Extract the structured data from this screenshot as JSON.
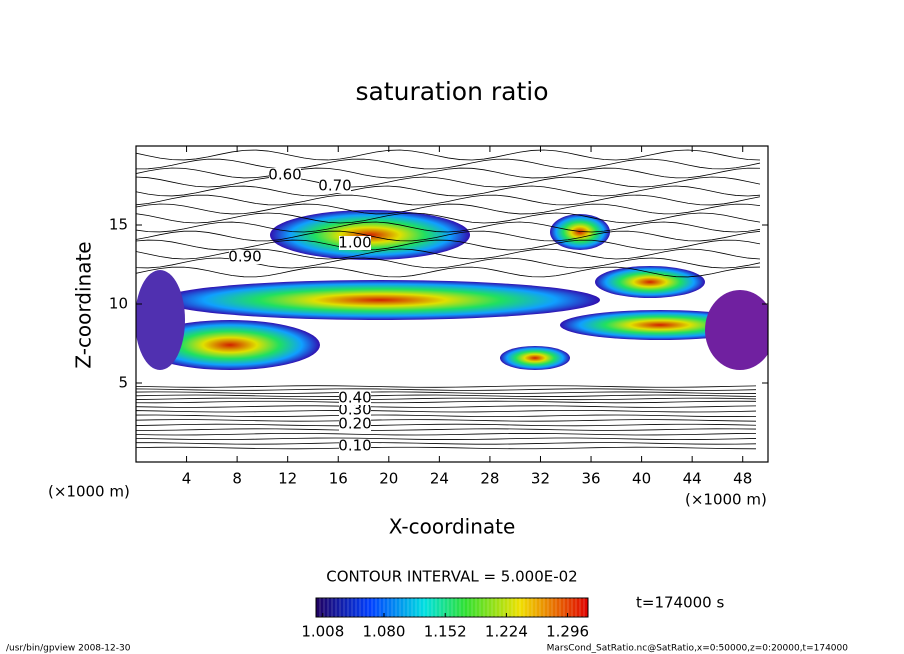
{
  "chart_data": {
    "type": "contour",
    "title": "saturation ratio",
    "xlabel": "X-coordinate",
    "ylabel": "Z-coordinate",
    "axis_unit": "(×1000 m)",
    "xlim": [
      0,
      50
    ],
    "xticks": [
      4,
      8,
      12,
      16,
      20,
      24,
      28,
      32,
      36,
      40,
      44,
      48
    ],
    "ylim": [
      0,
      20
    ],
    "yticks": [
      5,
      10,
      15
    ],
    "contour_interval": "CONTOUR INTERVAL = 5.000E-02",
    "time_label": "t=174000 s",
    "contour_labels": [
      {
        "value": 0.1,
        "label": "0.10"
      },
      {
        "value": 0.2,
        "label": "0.20"
      },
      {
        "value": 0.3,
        "label": "0.30"
      },
      {
        "value": 0.4,
        "label": "0.40"
      },
      {
        "value": 0.6,
        "label": "0.60"
      },
      {
        "value": 0.7,
        "label": "0.70"
      },
      {
        "value": 0.9,
        "label": "0.90"
      },
      {
        "value": 1,
        "label": "1.00"
      }
    ],
    "colorbar": {
      "lim": [
        1.0,
        1.32
      ],
      "ticks": [
        1.008,
        {
          "value": 1.08,
          "label": "1.080"
        },
        1.152,
        1.224,
        1.296
      ]
    },
    "footer_left": "/usr/bin/gpview   2008-12-30",
    "footer_right": "MarsCond_SatRatio.nc@SatRatio,x=0:50000,z=0:20000,t=174000"
  }
}
